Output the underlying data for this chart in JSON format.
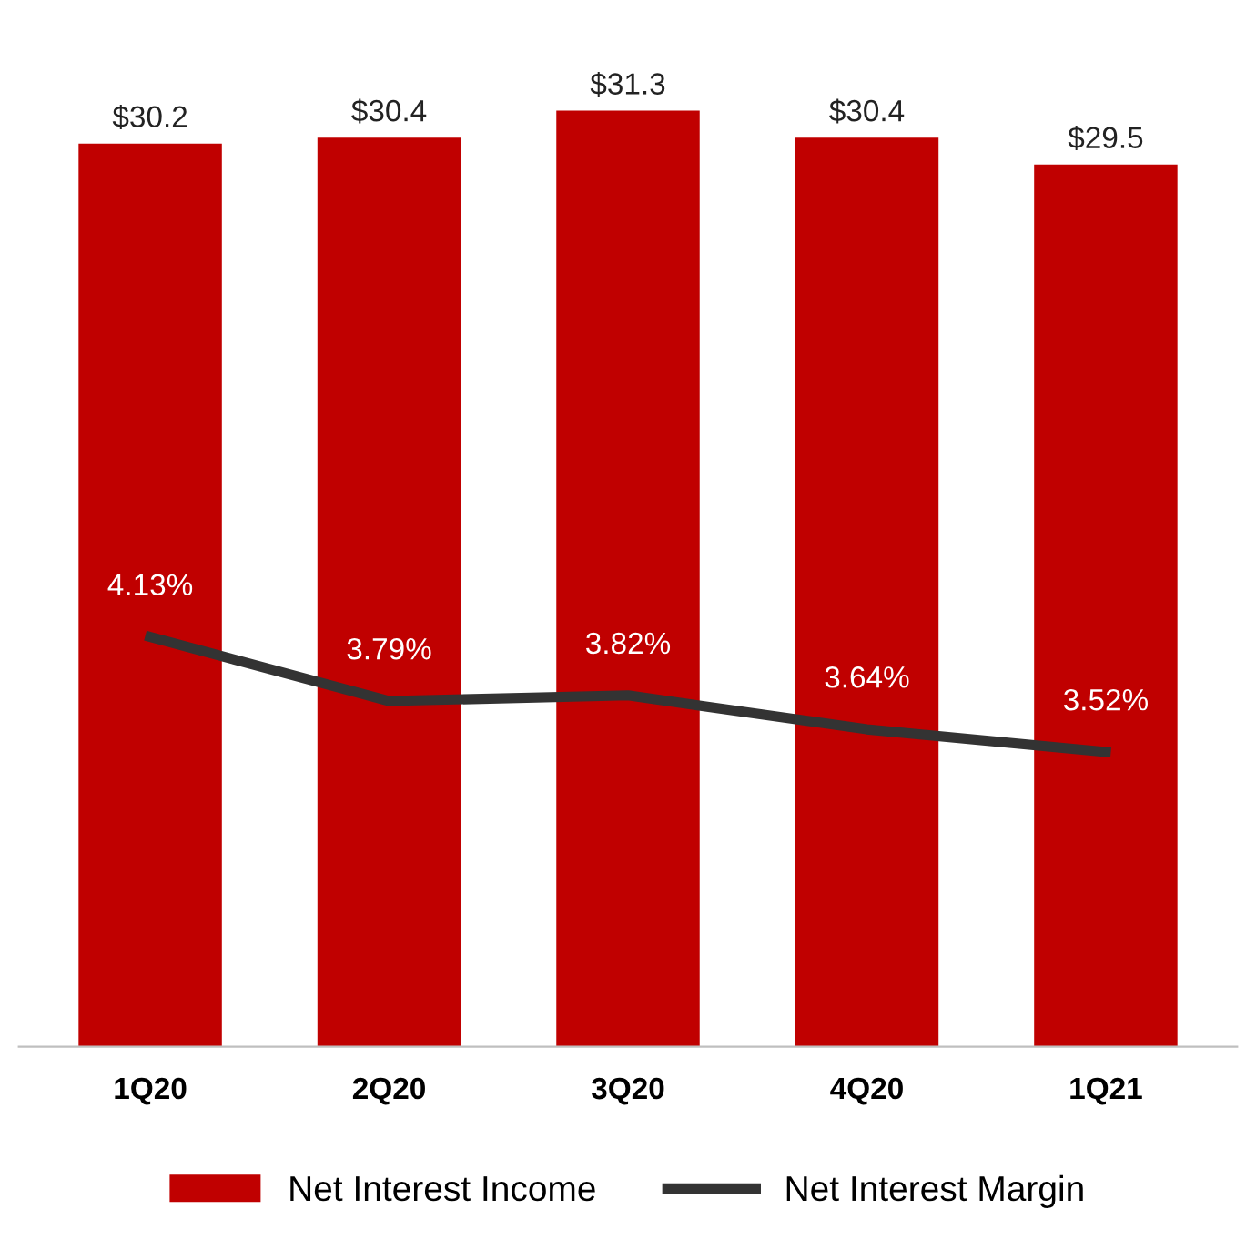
{
  "chart_data": {
    "type": "bar",
    "categories": [
      "1Q20",
      "2Q20",
      "3Q20",
      "4Q20",
      "1Q21"
    ],
    "series": [
      {
        "name": "Net Interest Income",
        "color": "#c00000",
        "values": [
          30.2,
          30.4,
          31.3,
          30.4,
          29.5
        ],
        "value_labels": [
          "$30.2",
          "$30.4",
          "$31.3",
          "$30.4",
          "$29.5"
        ]
      },
      {
        "name": "Net Interest Margin",
        "type": "line",
        "axis": "y2",
        "color": "#333333",
        "values": [
          4.13,
          3.79,
          3.82,
          3.64,
          3.52
        ],
        "value_labels": [
          "4.13%",
          "3.79%",
          "3.82%",
          "3.64%",
          "3.52%"
        ]
      }
    ],
    "tick_labels": "x",
    "grid": false,
    "legend": "bottom",
    "marker": "none",
    "line_style": "solid"
  }
}
